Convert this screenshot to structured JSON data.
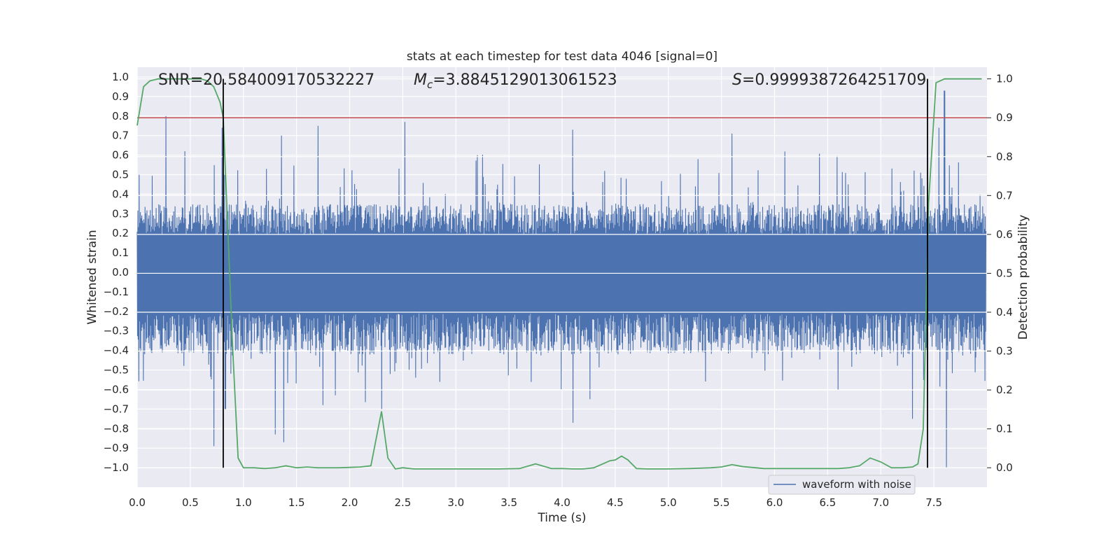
{
  "chart_data": {
    "type": "line",
    "title": "stats at each timestep for test data 4046 [signal=0]",
    "xlabel": "Time (s)",
    "ylabel_left": "Whitened strain",
    "ylabel_right": "Detection probability",
    "xlim": [
      0.0,
      8.0
    ],
    "ylim_left": [
      -1.1,
      1.05
    ],
    "ylim_right": [
      -0.05,
      1.03
    ],
    "x_ticks": [
      "0.0",
      "0.5",
      "1.0",
      "1.5",
      "2.0",
      "2.5",
      "3.0",
      "3.5",
      "4.0",
      "4.5",
      "5.0",
      "5.5",
      "6.0",
      "6.5",
      "7.0",
      "7.5"
    ],
    "y_left_ticks": [
      "1.0",
      "0.9",
      "0.8",
      "0.7",
      "0.6",
      "0.5",
      "0.4",
      "0.3",
      "0.2",
      "0.1",
      "0.0",
      "-0.1",
      "-0.2",
      "-0.3",
      "-0.4",
      "-0.5",
      "-0.6",
      "-0.7",
      "-0.8",
      "-0.9",
      "-1.0"
    ],
    "y_right_ticks": [
      "1.0",
      "0.9",
      "0.8",
      "0.7",
      "0.6",
      "0.5",
      "0.4",
      "0.3",
      "0.2",
      "0.1",
      "0.0"
    ],
    "grid": true,
    "legend_position": "bottom-right",
    "annotations": {
      "snr": "SNR=20.584009170532227",
      "mc": "=3.8845129013061523",
      "mc_symbol": "M",
      "mc_sub": "c",
      "s": "=0.9999387264251709",
      "s_symbol": "S"
    },
    "threshold": {
      "value": 0.9,
      "axis": "right",
      "color": "#c44e52"
    },
    "vlines": [
      0.81,
      7.44
    ],
    "series": [
      {
        "name": "waveform with noise",
        "axis": "left",
        "color": "#4c72b0",
        "envelope": {
          "base_max": 0.35,
          "base_min": -0.42,
          "peaks_high": [
            [
              0.02,
              0.5
            ],
            [
              0.27,
              0.8
            ],
            [
              0.45,
              0.62
            ],
            [
              0.8,
              0.74
            ],
            [
              1.36,
              0.7
            ],
            [
              1.7,
              0.75
            ],
            [
              2.52,
              0.77
            ],
            [
              3.2,
              0.6
            ],
            [
              4.1,
              0.73
            ],
            [
              5.6,
              0.71
            ],
            [
              7.55,
              0.74
            ],
            [
              7.6,
              0.93
            ]
          ],
          "peaks_low": [
            [
              0.72,
              -0.89
            ],
            [
              0.83,
              -0.7
            ],
            [
              1.3,
              -0.83
            ],
            [
              1.38,
              -0.87
            ],
            [
              1.75,
              -0.68
            ],
            [
              2.3,
              -0.7
            ],
            [
              4.1,
              -0.77
            ],
            [
              6.6,
              -0.6
            ],
            [
              7.3,
              -0.75
            ],
            [
              7.62,
              -1.0
            ]
          ]
        }
      },
      {
        "name": "Detection probability",
        "axis": "right",
        "color": "#55a868",
        "x": [
          0.0,
          0.06,
          0.12,
          0.2,
          0.3,
          0.4,
          0.5,
          0.6,
          0.66,
          0.72,
          0.78,
          0.81,
          0.9,
          0.95,
          1.0,
          1.1,
          1.2,
          1.3,
          1.4,
          1.5,
          1.6,
          1.7,
          1.8,
          1.9,
          2.0,
          2.1,
          2.2,
          2.3,
          2.36,
          2.43,
          2.5,
          2.6,
          2.8,
          3.0,
          3.2,
          3.4,
          3.6,
          3.75,
          3.9,
          4.0,
          4.1,
          4.2,
          4.3,
          4.45,
          4.5,
          4.56,
          4.62,
          4.7,
          4.8,
          5.0,
          5.2,
          5.4,
          5.5,
          5.6,
          5.7,
          5.9,
          6.0,
          6.2,
          6.4,
          6.6,
          6.7,
          6.8,
          6.9,
          7.0,
          7.1,
          7.2,
          7.3,
          7.35,
          7.4,
          7.45,
          7.52,
          7.6,
          7.8,
          7.95
        ],
        "values": [
          0.88,
          0.98,
          0.995,
          1.0,
          1.0,
          1.0,
          1.0,
          1.0,
          0.995,
          0.98,
          0.94,
          0.9,
          0.3,
          0.025,
          0.0,
          0.0,
          -0.002,
          0.0,
          0.005,
          0.0,
          0.002,
          0.0,
          0.0,
          0.0,
          0.001,
          0.002,
          0.005,
          0.145,
          0.025,
          -0.003,
          0.0,
          -0.003,
          -0.003,
          -0.003,
          -0.003,
          -0.003,
          -0.002,
          0.01,
          -0.002,
          -0.002,
          -0.003,
          -0.003,
          0.0,
          0.018,
          0.02,
          0.03,
          0.02,
          -0.002,
          -0.003,
          -0.003,
          -0.002,
          0.0,
          0.002,
          0.008,
          0.003,
          -0.002,
          -0.002,
          -0.002,
          -0.002,
          -0.002,
          0.0,
          0.005,
          0.025,
          0.015,
          0.0,
          0.0,
          0.002,
          0.01,
          0.1,
          0.68,
          0.99,
          1.0,
          1.0,
          1.0
        ]
      }
    ]
  },
  "legend": {
    "label": "waveform with noise"
  }
}
